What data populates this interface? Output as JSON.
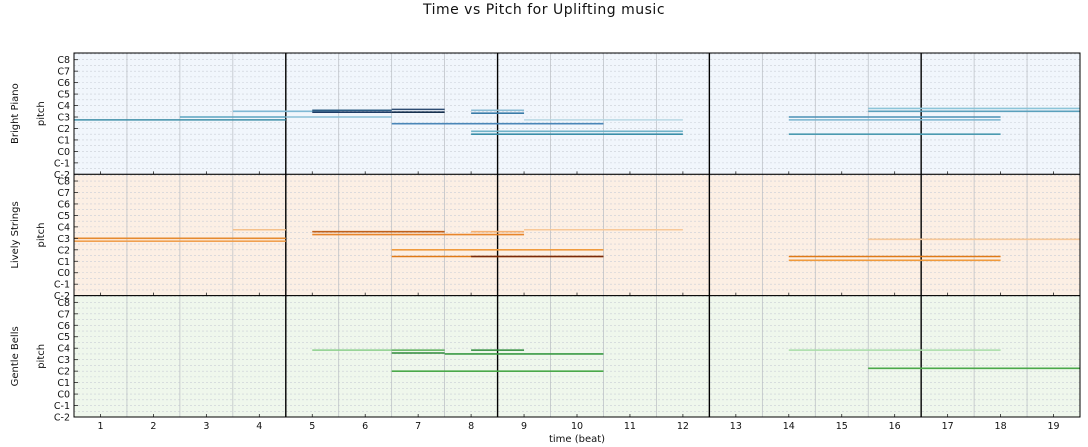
{
  "chart_data": {
    "type": "piano-roll",
    "title": "Time vs Pitch for Uplifting music",
    "xlabel": "time (beat)",
    "ylabel": "pitch",
    "xlim": [
      0.5,
      19.5
    ],
    "x_ticks": [
      1,
      2,
      3,
      4,
      5,
      6,
      7,
      8,
      9,
      10,
      11,
      12,
      13,
      14,
      15,
      16,
      17,
      18,
      19
    ],
    "y_tick_labels": [
      "C-2",
      "C-1",
      "C0",
      "C1",
      "C2",
      "C3",
      "C4",
      "C5",
      "C6",
      "C7",
      "C8"
    ],
    "y_tick_pitches": [
      0,
      12,
      24,
      36,
      48,
      60,
      72,
      84,
      96,
      108,
      120
    ],
    "ylim": [
      0,
      127
    ],
    "bar_lines": [
      4.5,
      8.5,
      12.5,
      16.5
    ],
    "grid": true,
    "tracks": [
      {
        "name": "Bright Piano",
        "background": "#f1f6fc",
        "notes": [
          {
            "start": 0.5,
            "end": 4.5,
            "pitch": 57,
            "color": "#3f8fa8"
          },
          {
            "start": 2.5,
            "end": 4.5,
            "pitch": 60,
            "color": "#5aa3c0"
          },
          {
            "start": 3.5,
            "end": 5.5,
            "pitch": 66,
            "color": "#7fb8d4"
          },
          {
            "start": 4.5,
            "end": 6.5,
            "pitch": 60,
            "color": "#8cc1d8"
          },
          {
            "start": 5.0,
            "end": 6.5,
            "pitch": 65,
            "color": "#1d3c66"
          },
          {
            "start": 5.0,
            "end": 6.5,
            "pitch": 67,
            "color": "#2d5d85"
          },
          {
            "start": 6.5,
            "end": 7.5,
            "pitch": 65,
            "color": "#16304f"
          },
          {
            "start": 6.5,
            "end": 7.5,
            "pitch": 68,
            "color": "#2d4c73"
          },
          {
            "start": 6.5,
            "end": 10.5,
            "pitch": 53,
            "color": "#4a86b8"
          },
          {
            "start": 8.0,
            "end": 9.0,
            "pitch": 64,
            "color": "#3a7ba8"
          },
          {
            "start": 8.0,
            "end": 9.0,
            "pitch": 67,
            "color": "#8bbcd4"
          },
          {
            "start": 8.0,
            "end": 12.0,
            "pitch": 42,
            "color": "#3a8ea8"
          },
          {
            "start": 8.0,
            "end": 12.0,
            "pitch": 45,
            "color": "#6fb2c8"
          },
          {
            "start": 9.0,
            "end": 12.0,
            "pitch": 57,
            "color": "#b8d8e4"
          },
          {
            "start": 14.0,
            "end": 18.0,
            "pitch": 42,
            "color": "#4b9ab0"
          },
          {
            "start": 14.0,
            "end": 18.0,
            "pitch": 60,
            "color": "#4a90b5"
          },
          {
            "start": 14.0,
            "end": 18.0,
            "pitch": 57,
            "color": "#7ab5ce"
          },
          {
            "start": 15.5,
            "end": 19.5,
            "pitch": 66,
            "color": "#5aa0bc"
          },
          {
            "start": 15.5,
            "end": 19.5,
            "pitch": 69,
            "color": "#8cc4d8"
          }
        ]
      },
      {
        "name": "Lively Strings",
        "background": "#fcefe4",
        "notes": [
          {
            "start": 0.5,
            "end": 4.5,
            "pitch": 60,
            "color": "#e58a30"
          },
          {
            "start": 0.5,
            "end": 4.5,
            "pitch": 57,
            "color": "#f0a050"
          },
          {
            "start": 3.5,
            "end": 4.5,
            "pitch": 69,
            "color": "#f5c08a"
          },
          {
            "start": 5.0,
            "end": 7.5,
            "pitch": 67,
            "color": "#c0601a"
          },
          {
            "start": 5.0,
            "end": 9.0,
            "pitch": 64,
            "color": "#e8852a"
          },
          {
            "start": 6.5,
            "end": 10.5,
            "pitch": 48,
            "color": "#f09a3c"
          },
          {
            "start": 6.5,
            "end": 10.5,
            "pitch": 41,
            "color": "#e07a18"
          },
          {
            "start": 8.0,
            "end": 9.0,
            "pitch": 67,
            "color": "#f5b070"
          },
          {
            "start": 8.0,
            "end": 10.5,
            "pitch": 41,
            "color": "#7a2a0a"
          },
          {
            "start": 9.0,
            "end": 12.0,
            "pitch": 69,
            "color": "#f8c898"
          },
          {
            "start": 14.0,
            "end": 18.0,
            "pitch": 41,
            "color": "#e07a18"
          },
          {
            "start": 14.0,
            "end": 18.0,
            "pitch": 37,
            "color": "#f09a3c"
          },
          {
            "start": 15.5,
            "end": 19.5,
            "pitch": 59,
            "color": "#f8c898"
          }
        ]
      },
      {
        "name": "Gentle Bells",
        "background": "#eff7ec",
        "notes": [
          {
            "start": 5.0,
            "end": 6.5,
            "pitch": 70,
            "color": "#8ccf8c"
          },
          {
            "start": 6.5,
            "end": 7.5,
            "pitch": 70,
            "color": "#5ab05a"
          },
          {
            "start": 6.5,
            "end": 7.5,
            "pitch": 67,
            "color": "#2e8b3a"
          },
          {
            "start": 6.5,
            "end": 10.5,
            "pitch": 48,
            "color": "#4aa84a"
          },
          {
            "start": 7.5,
            "end": 10.5,
            "pitch": 66,
            "color": "#3a9a44"
          },
          {
            "start": 8.0,
            "end": 9.0,
            "pitch": 70,
            "color": "#2e8b3a"
          },
          {
            "start": 14.0,
            "end": 18.0,
            "pitch": 70,
            "color": "#a8dca8"
          },
          {
            "start": 15.5,
            "end": 19.5,
            "pitch": 51,
            "color": "#4aa84a"
          }
        ]
      }
    ]
  }
}
